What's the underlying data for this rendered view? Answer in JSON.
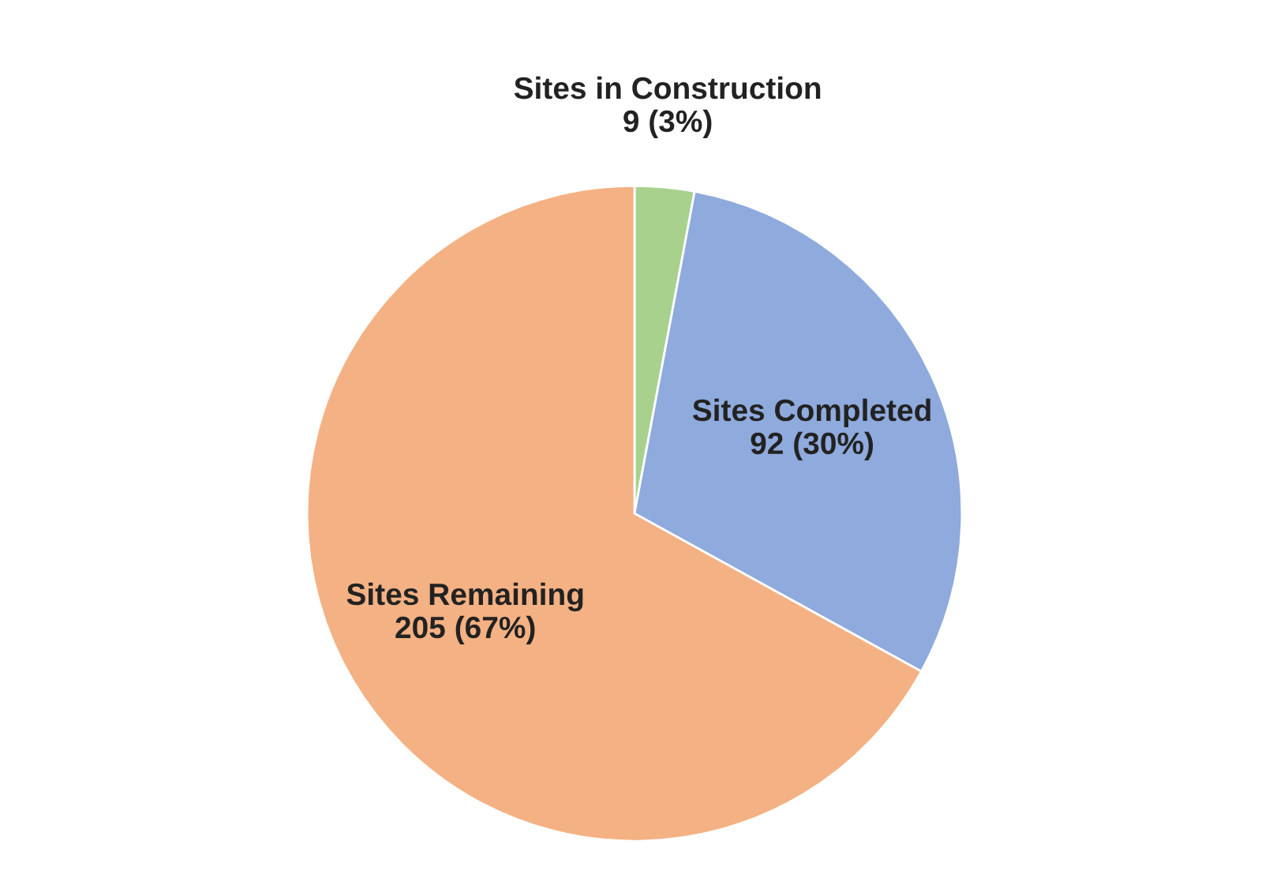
{
  "chart_data": {
    "type": "pie",
    "categories": [
      "Sites in Construction",
      "Sites Completed",
      "Sites Remaining"
    ],
    "values": [
      9,
      92,
      205
    ],
    "colors": [
      "#a9d18e",
      "#8faadc",
      "#f4b183"
    ],
    "value_labels": [
      "9 (3%)",
      "92 (30%)",
      "205 (67%)"
    ],
    "legend": false
  }
}
